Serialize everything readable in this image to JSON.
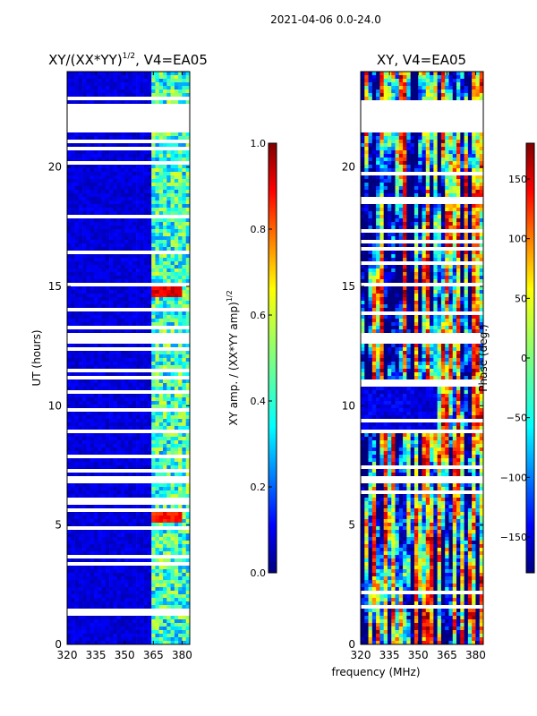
{
  "suptitle": "2021-04-06 0.0-24.0",
  "chart_data": [
    {
      "type": "heatmap",
      "title": "XY/(XX*YY)1/2, V4=EA05",
      "title_main": "XY/(XX*YY)",
      "title_sup": "1/2",
      "title_rest": ", V4=EA05",
      "xlabel": "frequency (MHz)",
      "ylabel": "UT (hours)",
      "xlim": [
        320,
        384
      ],
      "ylim": [
        0,
        24
      ],
      "x_ticks": [
        320,
        335,
        350,
        365,
        380
      ],
      "y_ticks": [
        0,
        5,
        10,
        15,
        20
      ],
      "colorbar": {
        "label": "XY amp. / (XX*YY amp)1/2",
        "label_main": "XY amp. / (XX*YY amp)",
        "label_sup": "1/2",
        "range": [
          0.0,
          1.0
        ],
        "ticks": [
          "0.0",
          "0.2",
          "0.4",
          "0.6",
          "0.8",
          "1.0"
        ]
      },
      "colormap": "jet",
      "blank_time_ranges_hours": [
        [
          21.5,
          22.6
        ],
        [
          12.6,
          13.1
        ],
        [
          6.8,
          7.1
        ],
        [
          1.2,
          1.4
        ],
        [
          9.7,
          9.9
        ]
      ],
      "hot_spots": [
        {
          "freq_mhz": [
            364,
            380
          ],
          "ut_hours": [
            14.6,
            15.0
          ],
          "value": 0.85
        },
        {
          "freq_mhz": [
            364,
            380
          ],
          "ut_hours": [
            5.1,
            5.5
          ],
          "value": 0.8
        }
      ]
    },
    {
      "type": "heatmap",
      "title": "XY, V4=EA05",
      "xlabel": "frequency (MHz)",
      "ylabel": "",
      "xlim": [
        320,
        384
      ],
      "ylim": [
        0,
        24
      ],
      "x_ticks": [
        320,
        335,
        350,
        365,
        380
      ],
      "y_ticks": [
        0,
        5,
        10,
        15,
        20
      ],
      "colorbar": {
        "label": "Phase (deg.)",
        "range": [
          -180,
          180
        ],
        "ticks": [
          "150",
          "100",
          "50",
          "0",
          "−50",
          "−100",
          "−150"
        ]
      },
      "colormap": "jet",
      "blank_time_ranges_hours": [
        [
          21.5,
          22.6
        ],
        [
          12.6,
          13.1
        ],
        [
          6.8,
          7.1
        ]
      ]
    }
  ],
  "colors": {
    "jet": [
      "#00007f",
      "#0000ff",
      "#007fff",
      "#00ffff",
      "#7fff7f",
      "#ffff00",
      "#ff7f00",
      "#ff0000",
      "#7f0000"
    ]
  }
}
